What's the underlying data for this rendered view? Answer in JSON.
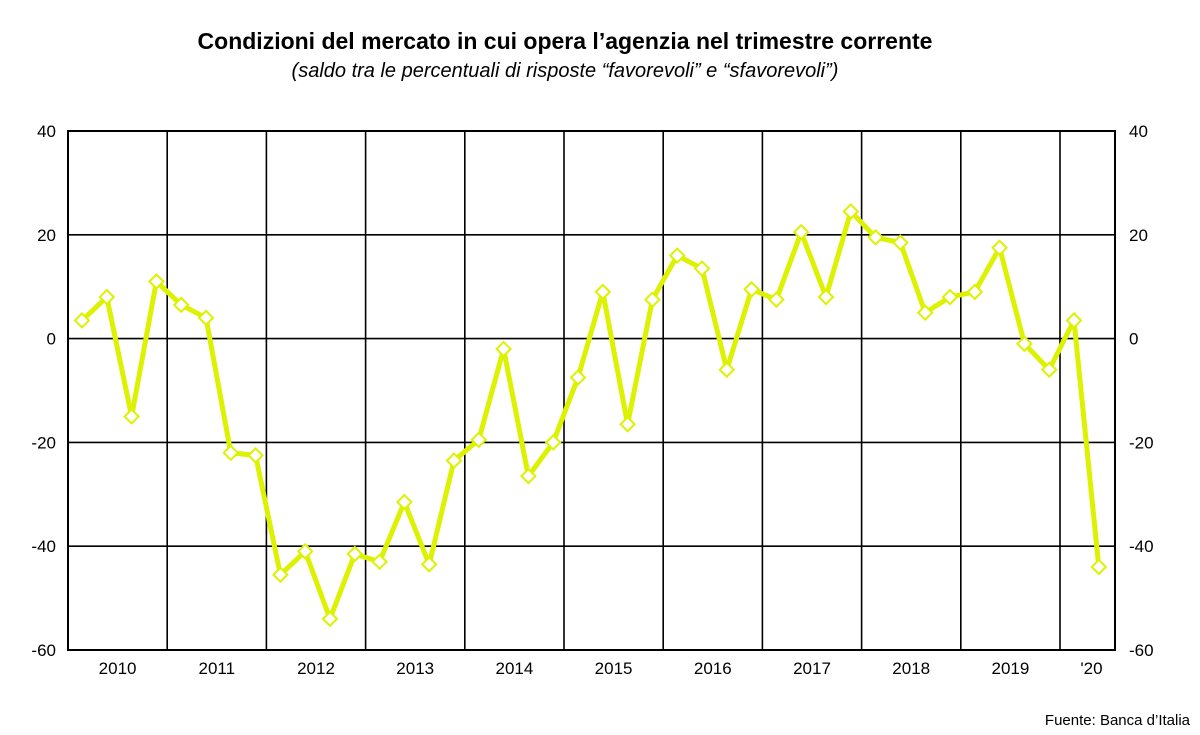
{
  "chart_data": {
    "type": "line",
    "title": "Condizioni del mercato in cui opera l’agenzia nel trimestre corrente",
    "subtitle": "(saldo tra le percentuali di risposte “favorevoli” e “sfavorevoli”)",
    "source": "Fuente: Banca d’Italia",
    "xlabel": "",
    "ylabel": "",
    "ylim": [
      -60,
      40
    ],
    "yticks": [
      40,
      20,
      0,
      -20,
      -40,
      -60
    ],
    "xtick_labels": [
      "2010",
      "2011",
      "2012",
      "2013",
      "2014",
      "2015",
      "2016",
      "2017",
      "2018",
      "2019",
      "'20"
    ],
    "grid": true,
    "line_color": "#dcf200",
    "marker": "diamond",
    "frequency": "quarterly",
    "series": [
      {
        "values": [
          3.5,
          8,
          -15,
          11,
          6.5,
          4,
          -22,
          -22.5,
          -45.5,
          -41,
          -54,
          -41.5,
          -43,
          -31.5,
          -43.5,
          -23.5,
          -19.5,
          -2,
          -26.5,
          -20,
          -7.5,
          9,
          -16.5,
          7.5,
          16,
          13.5,
          -6,
          9.5,
          7.5,
          20.5,
          8,
          24.5,
          19.5,
          18.5,
          5,
          8,
          9,
          17.5,
          -1,
          -6,
          3.5,
          -44
        ]
      }
    ]
  }
}
